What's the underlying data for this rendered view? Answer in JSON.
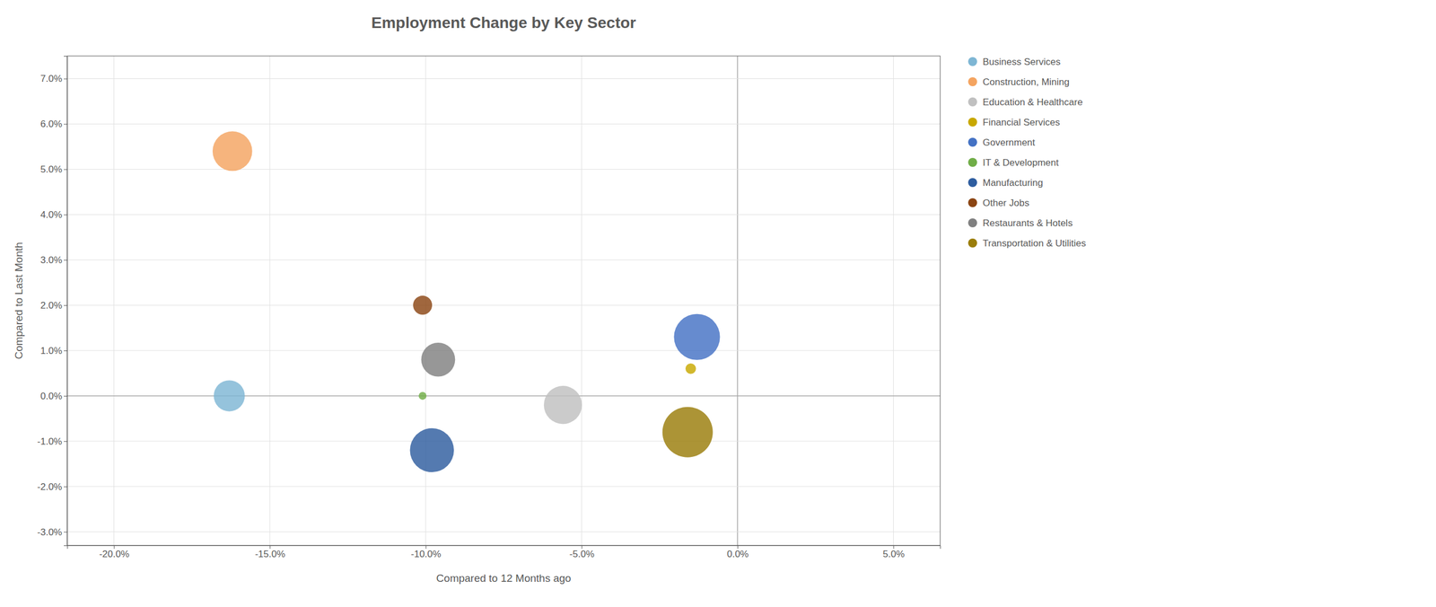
{
  "chart_data": {
    "type": "bubble",
    "title": "Employment Change by Key Sector",
    "xlabel": "Compared to 12 Months ago",
    "ylabel": "Compared to Last Month",
    "xlim": [
      -0.215,
      0.065
    ],
    "ylim": [
      -0.033,
      0.075
    ],
    "xticks": [
      {
        "value": -0.2,
        "label": "-20.0%"
      },
      {
        "value": -0.15,
        "label": "-15.0%"
      },
      {
        "value": -0.1,
        "label": "-10.0%"
      },
      {
        "value": -0.05,
        "label": "-5.0%"
      },
      {
        "value": 0.0,
        "label": "0.0%"
      },
      {
        "value": 0.05,
        "label": "5.0%"
      }
    ],
    "yticks": [
      {
        "value": -0.03,
        "label": "-3.0%"
      },
      {
        "value": -0.02,
        "label": "-2.0%"
      },
      {
        "value": -0.01,
        "label": "-1.0%"
      },
      {
        "value": 0.0,
        "label": "0.0%"
      },
      {
        "value": 0.01,
        "label": "1.0%"
      },
      {
        "value": 0.02,
        "label": "2.0%"
      },
      {
        "value": 0.03,
        "label": "3.0%"
      },
      {
        "value": 0.04,
        "label": "4.0%"
      },
      {
        "value": 0.05,
        "label": "5.0%"
      },
      {
        "value": 0.06,
        "label": "6.0%"
      },
      {
        "value": 0.07,
        "label": "7.0%"
      }
    ],
    "grid": true,
    "legend": "right",
    "series": [
      {
        "name": "Business Services",
        "color": "#7EB6D4",
        "x": [
          -0.163
        ],
        "values": [
          0.0
        ],
        "size": [
          1600
        ]
      },
      {
        "name": "Construction, Mining",
        "color": "#F4A460",
        "x": [
          -0.162
        ],
        "values": [
          0.054
        ],
        "size": [
          2600
        ]
      },
      {
        "name": "Education & Healthcare",
        "color": "#C0C0C0",
        "x": [
          -0.056
        ],
        "values": [
          -0.002
        ],
        "size": [
          2400
        ]
      },
      {
        "name": "Financial Services",
        "color": "#C8A800",
        "x": [
          -0.015
        ],
        "values": [
          0.006
        ],
        "size": [
          180
        ]
      },
      {
        "name": "Government",
        "color": "#4472C4",
        "x": [
          -0.013
        ],
        "values": [
          0.013
        ],
        "size": [
          3500
        ]
      },
      {
        "name": "IT & Development",
        "color": "#70AD47",
        "x": [
          -0.101
        ],
        "values": [
          0.0
        ],
        "size": [
          100
        ]
      },
      {
        "name": "Manufacturing",
        "color": "#2E5D9F",
        "x": [
          -0.098
        ],
        "values": [
          -0.012
        ],
        "size": [
          3200
        ]
      },
      {
        "name": "Other Jobs",
        "color": "#8B4513",
        "x": [
          -0.101
        ],
        "values": [
          0.02
        ],
        "size": [
          600
        ]
      },
      {
        "name": "Restaurants & Hotels",
        "color": "#808080",
        "x": [
          -0.096
        ],
        "values": [
          0.008
        ],
        "size": [
          1900
        ]
      },
      {
        "name": "Transportation & Utilities",
        "color": "#9A7D0A",
        "x": [
          -0.016
        ],
        "values": [
          -0.008
        ],
        "size": [
          4200
        ]
      }
    ]
  }
}
